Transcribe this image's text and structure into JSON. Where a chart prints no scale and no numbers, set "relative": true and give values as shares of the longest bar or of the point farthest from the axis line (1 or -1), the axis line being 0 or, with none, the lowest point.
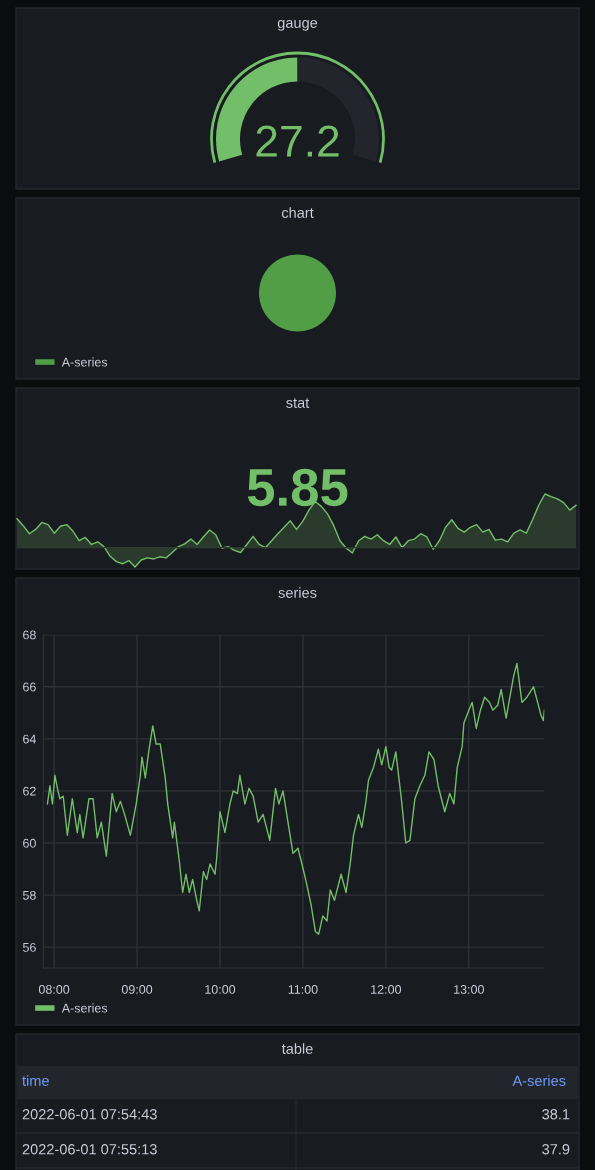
{
  "chart_data": [
    {
      "type": "donut",
      "title": "gauge",
      "categories": [
        null,
        null
      ],
      "values": [
        50,
        50
      ],
      "colors": [
        "#73bf69",
        "#22252b"
      ],
      "annotations": [
        "27.2"
      ]
    },
    {
      "type": "pie",
      "title": "chart",
      "categories": [
        "A-series"
      ],
      "values": [
        100
      ],
      "colors": [
        "#529e47"
      ],
      "legend": "bottom left"
    },
    {
      "type": "area",
      "title": "stat",
      "relative": true,
      "categories": [
        null,
        null,
        null,
        null,
        null,
        null,
        null,
        null,
        null,
        null,
        null,
        null,
        null,
        null,
        null,
        null,
        null,
        null,
        null,
        null,
        null,
        null,
        null,
        null,
        null,
        null,
        null,
        null,
        null,
        null,
        null,
        null,
        null,
        null,
        null,
        null,
        null,
        null,
        null,
        null,
        null,
        null,
        null,
        null,
        null,
        null,
        null,
        null,
        null,
        null,
        null,
        null,
        null,
        null,
        null,
        null,
        null,
        null,
        null,
        null,
        null,
        null,
        null,
        null,
        null,
        null,
        null,
        null,
        null,
        null,
        null,
        null,
        null,
        null,
        null,
        null,
        null,
        null,
        null,
        null,
        null,
        null,
        null,
        null,
        null,
        null,
        null,
        null,
        null,
        null,
        null
      ],
      "series": [
        {
          "color": "#73bf69",
          "values": [
            0.54,
            0.41,
            0.26,
            0.34,
            0.47,
            0.43,
            0.27,
            0.4,
            0.43,
            0.31,
            0.13,
            0.19,
            0.06,
            0.11,
            0.02,
            -0.16,
            -0.26,
            -0.3,
            -0.24,
            -0.36,
            -0.23,
            -0.19,
            -0.21,
            -0.17,
            -0.19,
            -0.09,
            0.02,
            0.07,
            0.16,
            0.06,
            0.2,
            0.33,
            0.24,
            -0.01,
            0.02,
            -0.05,
            -0.09,
            0.06,
            0.21,
            0.06,
            0.0,
            0.13,
            0.26,
            0.38,
            0.5,
            0.34,
            0.49,
            0.7,
            0.86,
            0.77,
            0.63,
            0.41,
            0.13,
            -0.01,
            -0.1,
            0.13,
            0.21,
            0.16,
            0.24,
            0.13,
            0.06,
            0.2,
            0.0,
            0.13,
            0.16,
            0.26,
            0.2,
            -0.03,
            0.13,
            0.38,
            0.52,
            0.36,
            0.29,
            0.38,
            0.43,
            0.29,
            0.34,
            0.14,
            0.16,
            0.11,
            0.27,
            0.33,
            0.27,
            0.52,
            0.79,
            1.0,
            0.95,
            0.91,
            0.84,
            0.7,
            0.79
          ]
        }
      ],
      "annotations": [
        "5.85"
      ]
    },
    {
      "type": "line",
      "title": "series",
      "x": [
        7.92,
        7.95,
        7.98,
        8.01,
        8.04,
        8.07,
        8.11,
        8.16,
        8.22,
        8.28,
        8.31,
        8.35,
        8.42,
        8.47,
        8.52,
        8.57,
        8.63,
        8.7,
        8.75,
        8.8,
        8.85,
        8.92,
        8.99,
        9.04,
        9.06,
        9.1,
        9.14,
        9.19,
        9.23,
        9.28,
        9.34,
        9.37,
        9.43,
        9.45,
        9.51,
        9.55,
        9.59,
        9.63,
        9.67,
        9.72,
        9.75,
        9.8,
        9.84,
        9.88,
        9.94,
        9.96,
        10.0,
        10.06,
        10.12,
        10.16,
        10.21,
        10.24,
        10.3,
        10.35,
        10.4,
        10.46,
        10.52,
        10.6,
        10.67,
        10.71,
        10.76,
        10.83,
        10.88,
        10.94,
        10.98,
        11.04,
        11.1,
        11.15,
        11.19,
        11.24,
        11.29,
        11.33,
        11.38,
        11.46,
        11.52,
        11.57,
        11.61,
        11.67,
        11.71,
        11.76,
        11.79,
        11.85,
        11.91,
        11.95,
        12.0,
        12.04,
        12.07,
        12.12,
        12.19,
        12.24,
        12.29,
        12.35,
        12.41,
        12.47,
        12.52,
        12.58,
        12.63,
        12.71,
        12.77,
        12.82,
        12.86,
        12.92,
        12.94,
        13.0,
        13.04,
        13.09,
        13.14,
        13.19,
        13.25,
        13.29,
        13.35,
        13.39,
        13.45,
        13.5,
        13.54,
        13.58,
        13.64,
        13.7,
        13.78,
        13.83,
        13.87,
        13.9,
        13.91
      ],
      "series": [
        {
          "name": "A-series",
          "color": "#73bf69",
          "values": [
            61.5,
            62.2,
            61.5,
            62.6,
            62.1,
            61.7,
            61.8,
            60.3,
            61.7,
            60.4,
            61.1,
            60.2,
            61.7,
            61.7,
            60.2,
            60.8,
            59.5,
            61.9,
            61.2,
            61.6,
            61.1,
            60.3,
            61.5,
            62.6,
            63.3,
            62.5,
            63.5,
            64.5,
            63.8,
            63.8,
            62.5,
            61.5,
            60.2,
            60.8,
            59.3,
            58.1,
            58.8,
            58.1,
            58.6,
            57.8,
            57.4,
            58.9,
            58.6,
            59.2,
            58.8,
            59.4,
            61.2,
            60.4,
            61.5,
            62.0,
            61.9,
            62.6,
            61.5,
            62.1,
            61.8,
            60.8,
            61.1,
            60.1,
            62.1,
            61.5,
            62.0,
            60.6,
            59.6,
            59.8,
            59.3,
            58.5,
            57.6,
            56.6,
            56.5,
            57.2,
            57.0,
            58.2,
            57.8,
            58.8,
            58.1,
            59.2,
            60.3,
            61.1,
            60.6,
            61.6,
            62.4,
            62.9,
            63.6,
            63.0,
            63.7,
            62.9,
            62.8,
            63.5,
            61.6,
            60.0,
            60.1,
            61.7,
            62.2,
            62.6,
            63.5,
            63.2,
            62.2,
            61.2,
            61.9,
            61.5,
            62.9,
            63.7,
            64.6,
            65.1,
            65.4,
            64.4,
            65.1,
            65.6,
            65.4,
            65.1,
            65.3,
            65.9,
            64.8,
            65.7,
            66.4,
            66.9,
            65.4,
            65.6,
            66.0,
            65.4,
            64.9,
            64.7,
            65.1
          ]
        }
      ],
      "xlim": [
        7.87,
        13.91
      ],
      "ylim": [
        55.2,
        68
      ],
      "xticks": [
        {
          "value": 8,
          "label": "08:00"
        },
        {
          "value": 9,
          "label": "09:00"
        },
        {
          "value": 10,
          "label": "10:00"
        },
        {
          "value": 11,
          "label": "11:00"
        },
        {
          "value": 12,
          "label": "12:00"
        },
        {
          "value": 13,
          "label": "13:00"
        }
      ],
      "yticks": [
        56,
        58,
        60,
        62,
        64,
        66,
        68
      ],
      "grid": true,
      "legend": "bottom left"
    },
    {
      "type": "other",
      "title": "table",
      "annotations": [
        "time",
        "A-series",
        "2022-06-01 07:54:43",
        "38.1",
        "2022-06-01 07:55:13",
        "37.9"
      ]
    }
  ]
}
